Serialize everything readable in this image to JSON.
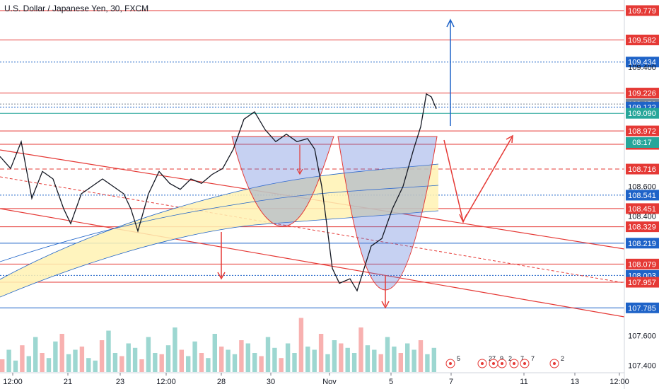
{
  "header": {
    "title": "U.S. Dollar / Japanese Yen, 30, FXCM"
  },
  "colors": {
    "red": "#e53935",
    "blue": "#1e63c8",
    "green": "#26a69a",
    "navy": "#1565c0",
    "cup_fill": "#5c7bd9",
    "band_fill": "#fff2b3"
  },
  "chart_data": {
    "type": "candlestick",
    "ylim": [
      107.35,
      109.85
    ],
    "price_levels": [
      {
        "value": 109.779,
        "label": "109.779",
        "color": "#e53935",
        "style": "solid"
      },
      {
        "value": 109.582,
        "label": "109.582",
        "color": "#e53935",
        "style": "solid"
      },
      {
        "value": 109.434,
        "label": "109.434",
        "color": "#1e63c8",
        "style": "dotted"
      },
      {
        "value": 109.226,
        "label": "109.226",
        "color": "#e53935",
        "style": "solid"
      },
      {
        "value": 109.152,
        "label": "109.152",
        "color": "#7d8694",
        "style": "dotted"
      },
      {
        "value": 109.132,
        "label": "109.132",
        "color": "#1e63c8",
        "style": "dotted"
      },
      {
        "value": 109.09,
        "label": "109.090",
        "color": "#26a69a",
        "style": "solid"
      },
      {
        "value": 108.972,
        "label": "108.972",
        "color": "#e53935",
        "style": "solid"
      },
      {
        "value": 108.882,
        "label": "108.882",
        "color": "#e53935",
        "style": "solid"
      },
      {
        "value": 108.716,
        "label": "108.716",
        "color": "#e53935",
        "style": "dashed"
      },
      {
        "value": 108.541,
        "label": "108.541",
        "color": "#1e63c8",
        "style": "dotted"
      },
      {
        "value": 108.451,
        "label": "108.451",
        "color": "#e53935",
        "style": "solid"
      },
      {
        "value": 108.329,
        "label": "108.329",
        "color": "#e53935",
        "style": "solid"
      },
      {
        "value": 108.219,
        "label": "108.219",
        "color": "#1e63c8",
        "style": "solid"
      },
      {
        "value": 108.079,
        "label": "108.079",
        "color": "#e53935",
        "style": "solid"
      },
      {
        "value": 108.003,
        "label": "108.003",
        "color": "#1e63c8",
        "style": "dotted"
      },
      {
        "value": 107.957,
        "label": "107.957",
        "color": "#e53935",
        "style": "solid"
      },
      {
        "value": 107.785,
        "label": "107.785",
        "color": "#1e63c8",
        "style": "solid"
      }
    ],
    "y_ticks": [
      "109.400",
      "108.600",
      "108.400",
      "107.600",
      "107.400"
    ],
    "countdown": "08:17",
    "x_ticks": [
      {
        "label": "12:00",
        "x": 18
      },
      {
        "label": "21",
        "x": 96
      },
      {
        "label": "23",
        "x": 170
      },
      {
        "label": "12:00",
        "x": 235
      },
      {
        "label": "28",
        "x": 313
      },
      {
        "label": "30",
        "x": 383
      },
      {
        "label": "Nov",
        "x": 466
      },
      {
        "label": "5",
        "x": 553
      },
      {
        "label": "7",
        "x": 638
      },
      {
        "label": "11",
        "x": 741
      },
      {
        "label": "13",
        "x": 813
      },
      {
        "label": "12:00",
        "x": 876
      }
    ],
    "price_path": [
      [
        0,
        108.8
      ],
      [
        15,
        108.72
      ],
      [
        30,
        108.9
      ],
      [
        45,
        108.52
      ],
      [
        60,
        108.7
      ],
      [
        75,
        108.65
      ],
      [
        90,
        108.45
      ],
      [
        100,
        108.35
      ],
      [
        115,
        108.55
      ],
      [
        130,
        108.6
      ],
      [
        145,
        108.65
      ],
      [
        160,
        108.6
      ],
      [
        175,
        108.55
      ],
      [
        185,
        108.45
      ],
      [
        195,
        108.3
      ],
      [
        210,
        108.55
      ],
      [
        225,
        108.7
      ],
      [
        240,
        108.62
      ],
      [
        255,
        108.58
      ],
      [
        270,
        108.65
      ],
      [
        285,
        108.62
      ],
      [
        300,
        108.68
      ],
      [
        315,
        108.72
      ],
      [
        330,
        108.85
      ],
      [
        345,
        109.05
      ],
      [
        360,
        109.1
      ],
      [
        375,
        108.98
      ],
      [
        390,
        108.9
      ],
      [
        405,
        108.95
      ],
      [
        420,
        108.9
      ],
      [
        435,
        108.92
      ],
      [
        445,
        108.85
      ],
      [
        455,
        108.6
      ],
      [
        462,
        108.35
      ],
      [
        470,
        108.05
      ],
      [
        480,
        107.95
      ],
      [
        495,
        107.98
      ],
      [
        505,
        107.9
      ],
      [
        515,
        108.05
      ],
      [
        525,
        108.2
      ],
      [
        540,
        108.25
      ],
      [
        555,
        108.45
      ],
      [
        570,
        108.6
      ],
      [
        585,
        108.85
      ],
      [
        595,
        109.0
      ],
      [
        603,
        109.22
      ],
      [
        610,
        109.2
      ],
      [
        617,
        109.12
      ]
    ],
    "volume_heights": [
      20,
      35,
      18,
      42,
      25,
      55,
      30,
      22,
      48,
      60,
      28,
      35,
      40,
      22,
      18,
      50,
      65,
      30,
      25,
      45,
      38,
      20,
      55,
      30,
      28,
      42,
      70,
      35,
      25,
      48,
      30,
      22,
      60,
      40,
      35,
      28,
      50,
      45,
      30,
      25,
      55,
      38,
      22,
      45,
      30,
      85,
      40,
      35,
      60,
      28,
      50,
      45,
      38,
      30,
      70,
      42,
      35,
      28,
      55,
      40,
      30,
      45,
      35,
      50,
      28,
      38
    ],
    "events": [
      {
        "label": "5",
        "x": 646
      },
      {
        "label": "27",
        "x": 691
      },
      {
        "label": "9",
        "x": 707
      },
      {
        "label": "2",
        "x": 719
      },
      {
        "label": "7",
        "x": 736
      },
      {
        "label": "7",
        "x": 751
      },
      {
        "label": "2",
        "x": 793
      }
    ]
  }
}
